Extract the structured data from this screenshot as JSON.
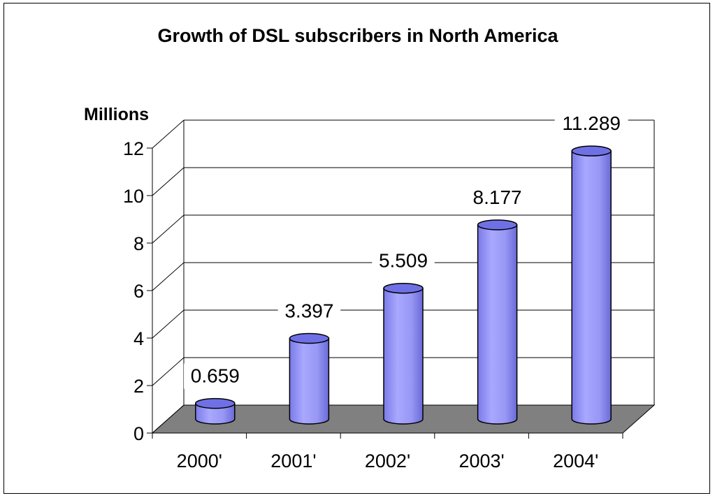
{
  "chart_data": {
    "type": "bar",
    "title": "Growth of DSL subscribers in North America",
    "ylabel": "Millions",
    "xlabel": "",
    "categories": [
      "2000'",
      "2001'",
      "2002'",
      "2003'",
      "2004'"
    ],
    "values": [
      0.659,
      3.397,
      5.509,
      8.177,
      11.289
    ],
    "value_labels": [
      "0.659",
      "3.397",
      "5.509",
      "8.177",
      "11.289"
    ],
    "ylim": [
      0,
      12
    ],
    "yticks": [
      "0",
      "2",
      "4",
      "6",
      "8",
      "10",
      "12"
    ],
    "grid": true,
    "legend": "none",
    "style": "3d-cylinder",
    "colors": {
      "bar_front": "#9999ff",
      "bar_top": "#7070e6",
      "floor": "#808080",
      "grid": "#000000"
    }
  }
}
